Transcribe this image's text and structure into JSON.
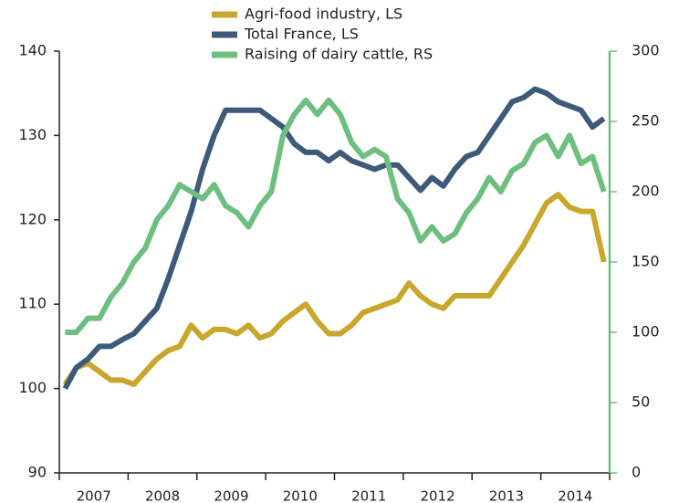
{
  "chart_data": {
    "type": "line",
    "categories": [
      null,
      null,
      "2007",
      null,
      null,
      null,
      null,
      null,
      "2008",
      null,
      null,
      null,
      null,
      null,
      "2009",
      null,
      null,
      null,
      null,
      null,
      "2010",
      null,
      null,
      null,
      null,
      null,
      "2011",
      null,
      null,
      null,
      null,
      null,
      "2012",
      null,
      null,
      null,
      null,
      null,
      "2013",
      null,
      null,
      null,
      null,
      null,
      "2014",
      null,
      null,
      null
    ],
    "series": [
      {
        "name": "Agri-food industry, LS",
        "color": "#c9a62c",
        "values": [
          100.5,
          102.5,
          103,
          102,
          101,
          101,
          100.5,
          102,
          103.5,
          104.5,
          105,
          107.5,
          106,
          107,
          107,
          106.5,
          107.5,
          106,
          106.5,
          108,
          109,
          110,
          108,
          106.5,
          106.5,
          107.5,
          109,
          109.5,
          110,
          110.5,
          112.5,
          111,
          110,
          109.5,
          111,
          111,
          111,
          111,
          113,
          115,
          117,
          119.5,
          122,
          123,
          121.5,
          121,
          121,
          115
        ]
      },
      {
        "name": "Total France, LS",
        "color": "#3d5a7a",
        "values": [
          100,
          102.5,
          103.5,
          105,
          105,
          105.8,
          106.5,
          108,
          109.5,
          113,
          117,
          121,
          126,
          130,
          133,
          133,
          133,
          133,
          132,
          131,
          129,
          128,
          128,
          127,
          128,
          127,
          126.5,
          126,
          126.5,
          126.5,
          125,
          123.5,
          125,
          124,
          126,
          127.5,
          128,
          130,
          132,
          134,
          134.5,
          135.5,
          135,
          134,
          133.5,
          133,
          131,
          132
        ]
      },
      {
        "name": "Raising of dairy cattle, RS",
        "color": "#6dbf80",
        "axis": "y2",
        "values": [
          100,
          100,
          110,
          110,
          125,
          135,
          150,
          160,
          180,
          190,
          205,
          200,
          195,
          205,
          190,
          185,
          175,
          190,
          200,
          240,
          255,
          265,
          255,
          265,
          255,
          235,
          225,
          230,
          225,
          195,
          185,
          165,
          175,
          165,
          170,
          185,
          195,
          210,
          200,
          215,
          220,
          235,
          240,
          225,
          240,
          220,
          225,
          200
        ]
      }
    ],
    "ylim": [
      90,
      140
    ],
    "yticks": [
      90,
      100,
      110,
      120,
      130,
      140
    ],
    "y2lim": [
      0,
      300
    ],
    "y2ticks": [
      0,
      50,
      100,
      150,
      200,
      250,
      300
    ],
    "y2color": "#6dbf80"
  }
}
